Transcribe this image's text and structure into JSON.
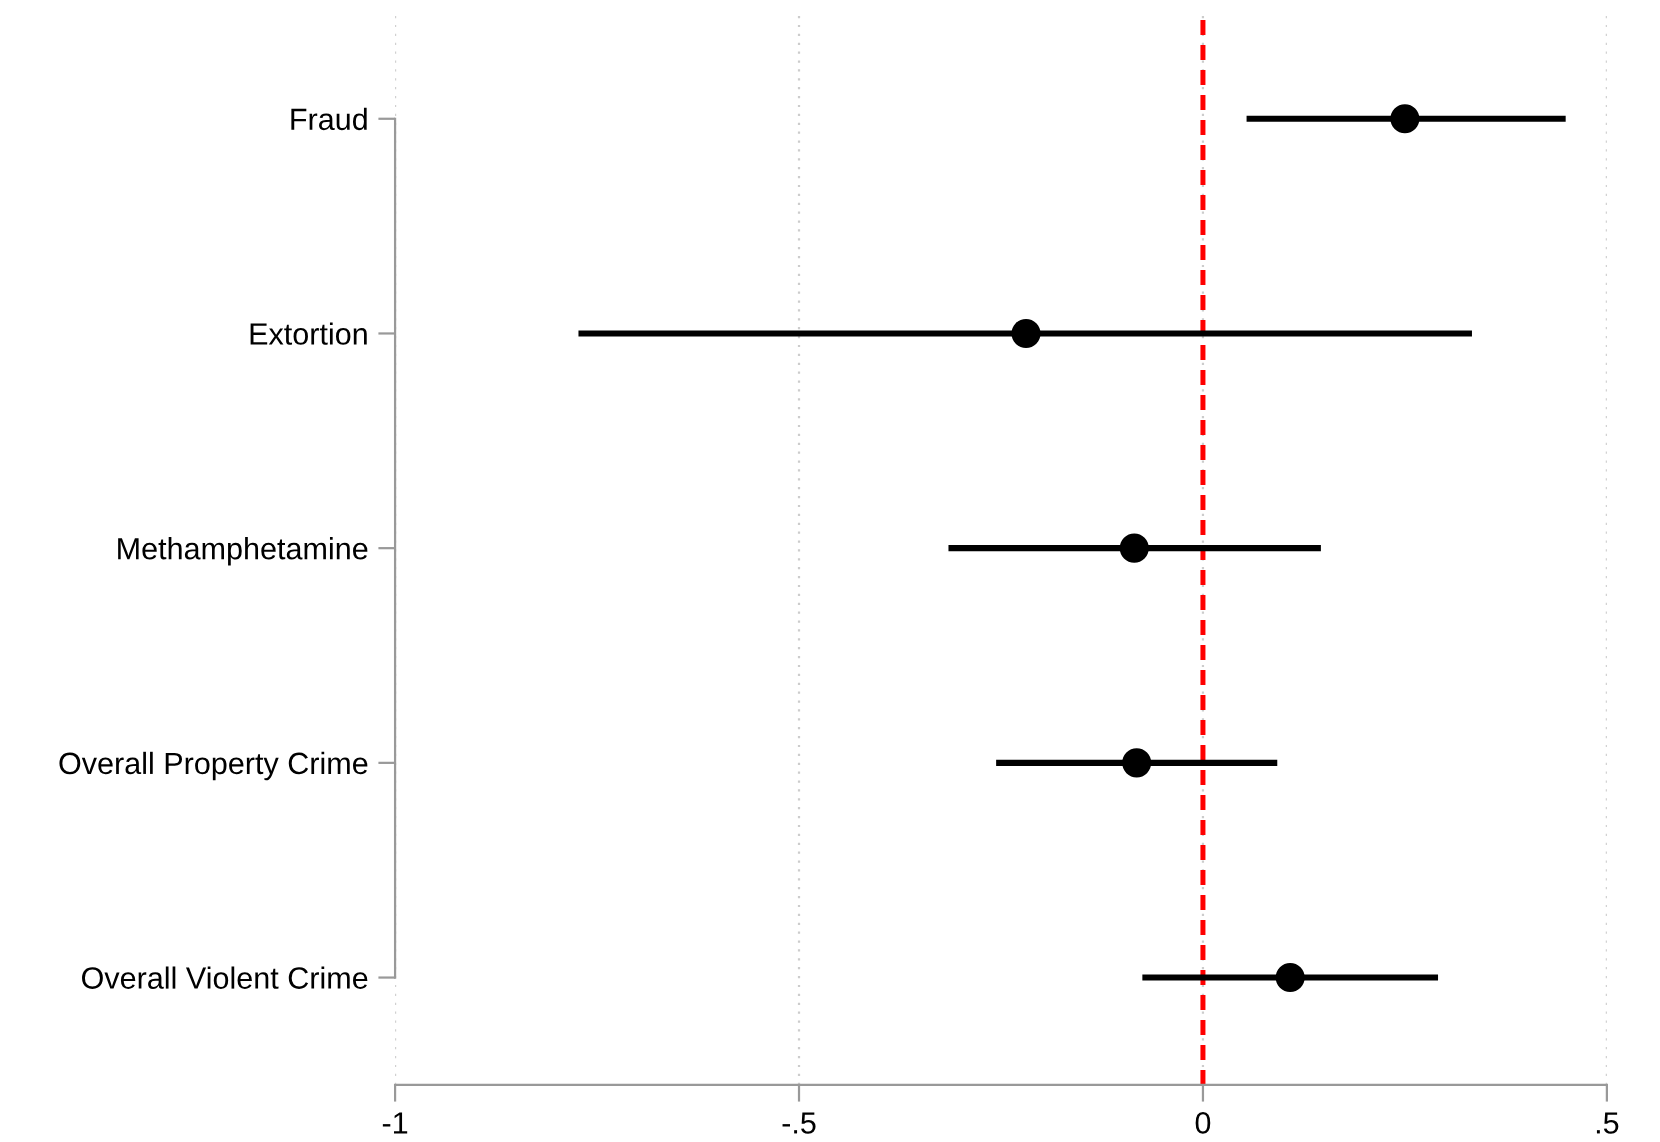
{
  "chart_data": {
    "type": "scatter",
    "orientation": "horizontal",
    "categories": [
      "Fraud",
      "Extortion",
      "Methamphetamine",
      "Overall Property Crime",
      "Overall Violent Crime"
    ],
    "values": [
      0.25,
      -0.219,
      -0.085,
      -0.082,
      0.108
    ],
    "errors": [
      [
        0.054,
        0.449
      ],
      [
        -0.773,
        0.333
      ],
      [
        -0.315,
        0.146
      ],
      [
        -0.256,
        0.092
      ],
      [
        -0.075,
        0.291
      ]
    ],
    "color": "#000000",
    "marker": "circle",
    "xlim": [
      -1,
      0.5
    ],
    "xticks": [
      -1,
      {
        "value": -0.5,
        "label": "-.5"
      },
      0,
      {
        "value": 0.5,
        "label": ".5"
      }
    ],
    "grid": "x",
    "ref_lines": [
      {
        "axis": "x",
        "value": 0,
        "color": "#ff0000",
        "line_style": "dashed"
      }
    ]
  }
}
